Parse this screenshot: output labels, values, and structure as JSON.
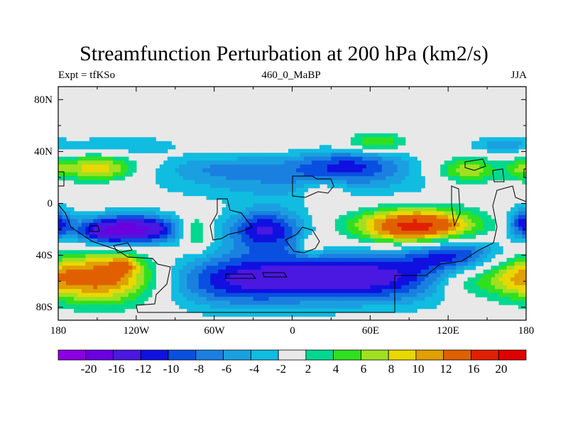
{
  "chart_data": {
    "type": "heatmap",
    "title": "Streamfunction Perturbation at 200 hPa (km2/s)",
    "subtitle_left": "Expt = tfKSo",
    "subtitle_center": "460_0_MaBP",
    "subtitle_right": "JJA",
    "x_ticks": [
      "180",
      "120W",
      "60W",
      "0",
      "60E",
      "120E",
      "180"
    ],
    "x_tick_values": [
      -180,
      -120,
      -60,
      0,
      60,
      120,
      180
    ],
    "y_ticks": [
      "80N",
      "40N",
      "0",
      "40S",
      "80S"
    ],
    "y_tick_values": [
      80,
      40,
      0,
      -40,
      -80
    ],
    "xlim": [
      -180,
      180
    ],
    "ylim": [
      -90,
      90
    ],
    "colorbar_labels": [
      "-20",
      "-16",
      "-12",
      "-10",
      "-8",
      "-6",
      "-4",
      "-2",
      "2",
      "4",
      "6",
      "8",
      "10",
      "12",
      "16",
      "20"
    ],
    "colorbar_levels": [
      -20,
      -16,
      -12,
      -10,
      -8,
      -6,
      -4,
      -2,
      2,
      4,
      6,
      8,
      10,
      12,
      16,
      20
    ],
    "colorbar_colors": [
      "#8a00e0",
      "#6a00e0",
      "#4a18e0",
      "#1010e0",
      "#0a50e0",
      "#1a80e0",
      "#1aa0e0",
      "#10bce0",
      "#e8e8e8",
      "#00d890",
      "#30e020",
      "#a0e020",
      "#e8d800",
      "#e0a000",
      "#e06000",
      "#e02000",
      "#e00000"
    ],
    "field_blobs": [
      {
        "lon": -125,
        "lat": -20,
        "rlon": 40,
        "rlat": 11,
        "amp": -18
      },
      {
        "lon": -145,
        "lat": -25,
        "rlon": 18,
        "rlat": 8,
        "amp": -4
      },
      {
        "lon": -20,
        "lat": -20,
        "rlon": 30,
        "rlat": 16,
        "amp": -12
      },
      {
        "lon": 45,
        "lat": -57,
        "rlon": 95,
        "rlat": 20,
        "amp": -14
      },
      {
        "lon": -50,
        "lat": -60,
        "rlon": 55,
        "rlat": 22,
        "amp": -7
      },
      {
        "lon": 125,
        "lat": -38,
        "rlon": 40,
        "rlat": 12,
        "amp": -9
      },
      {
        "lon": 178,
        "lat": -15,
        "rlon": 12,
        "rlat": 12,
        "amp": -10
      },
      {
        "lon": 5,
        "lat": 15,
        "rlon": 110,
        "rlat": 14,
        "amp": -5
      },
      {
        "lon": 45,
        "lat": 30,
        "rlon": 45,
        "rlat": 12,
        "amp": -9
      },
      {
        "lon": -50,
        "lat": 28,
        "rlon": 55,
        "rlat": 10,
        "amp": -5
      },
      {
        "lon": -130,
        "lat": 45,
        "rlon": 45,
        "rlat": 7,
        "amp": -4
      },
      {
        "lon": 160,
        "lat": 45,
        "rlon": 25,
        "rlat": 6,
        "amp": -5
      },
      {
        "lon": 95,
        "lat": -18,
        "rlon": 45,
        "rlat": 14,
        "amp": 18
      },
      {
        "lon": -140,
        "lat": -57,
        "rlon": 40,
        "rlat": 20,
        "amp": 13
      },
      {
        "lon": -130,
        "lat": -47,
        "rlon": 10,
        "rlat": 6,
        "amp": 6
      },
      {
        "lon": 170,
        "lat": -57,
        "rlon": 35,
        "rlat": 17,
        "amp": 10
      },
      {
        "lon": 128,
        "lat": -62,
        "rlon": 25,
        "rlat": 12,
        "amp": 5
      },
      {
        "lon": -150,
        "lat": 27,
        "rlon": 30,
        "rlat": 10,
        "amp": 10
      },
      {
        "lon": 135,
        "lat": 25,
        "rlon": 25,
        "rlat": 10,
        "amp": 8
      },
      {
        "lon": 65,
        "lat": 47,
        "rlon": 22,
        "rlat": 7,
        "amp": 7
      },
      {
        "lon": 25,
        "lat": 10,
        "rlon": 18,
        "rlat": 8,
        "amp": 5
      },
      {
        "lon": -75,
        "lat": -22,
        "rlon": 12,
        "rlat": 13,
        "amp": 8
      },
      {
        "lon": 15,
        "lat": -33,
        "rlon": 10,
        "rlat": 8,
        "amp": 5
      },
      {
        "lon": 175,
        "lat": 25,
        "rlon": 10,
        "rlat": 8,
        "amp": 4
      }
    ]
  }
}
